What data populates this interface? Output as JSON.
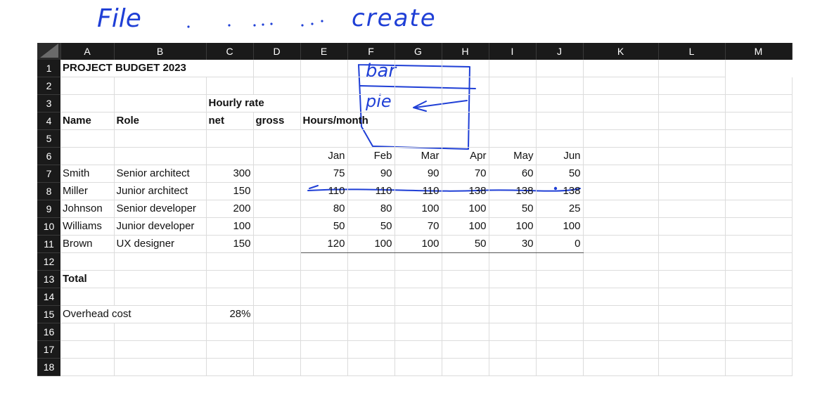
{
  "annotations": {
    "file_label": "File",
    "create_label": "create",
    "bar_label": "bar",
    "pie_label": "pie"
  },
  "columns": [
    "A",
    "B",
    "C",
    "D",
    "E",
    "F",
    "G",
    "H",
    "I",
    "J",
    "K",
    "L",
    "M"
  ],
  "rows": [
    "1",
    "2",
    "3",
    "4",
    "5",
    "6",
    "7",
    "8",
    "9",
    "10",
    "11",
    "12",
    "13",
    "14",
    "15",
    "16",
    "17",
    "18"
  ],
  "cells": {
    "title": "PROJECT BUDGET 2023",
    "hourly_rate": "Hourly rate",
    "name_hdr": "Name",
    "role_hdr": "Role",
    "net_hdr": "net",
    "gross_hdr": "gross",
    "hours_hdr": "Hours/month",
    "months": [
      "Jan",
      "Feb",
      "Mar",
      "Apr",
      "May",
      "Jun"
    ],
    "staff": [
      {
        "name": "Smith",
        "role": "Senior architect",
        "rate": "300",
        "hours": [
          "75",
          "90",
          "90",
          "70",
          "60",
          "50"
        ]
      },
      {
        "name": "Miller",
        "role": "Junior architect",
        "rate": "150",
        "hours": [
          "110",
          "110",
          "110",
          "138",
          "138",
          "138"
        ]
      },
      {
        "name": "Johnson",
        "role": "Senior developer",
        "rate": "200",
        "hours": [
          "80",
          "80",
          "100",
          "100",
          "50",
          "25"
        ]
      },
      {
        "name": "Williams",
        "role": "Junior developer",
        "rate": "100",
        "hours": [
          "50",
          "50",
          "70",
          "100",
          "100",
          "100"
        ]
      },
      {
        "name": "Brown",
        "role": "UX designer",
        "rate": "150",
        "hours": [
          "120",
          "100",
          "100",
          "50",
          "30",
          "0"
        ]
      }
    ],
    "total": "Total",
    "overhead_label": "Overhead cost",
    "overhead_value": "28%"
  },
  "colors": {
    "ink": "#1f3fd6",
    "header_bg": "#1a1a1a"
  }
}
